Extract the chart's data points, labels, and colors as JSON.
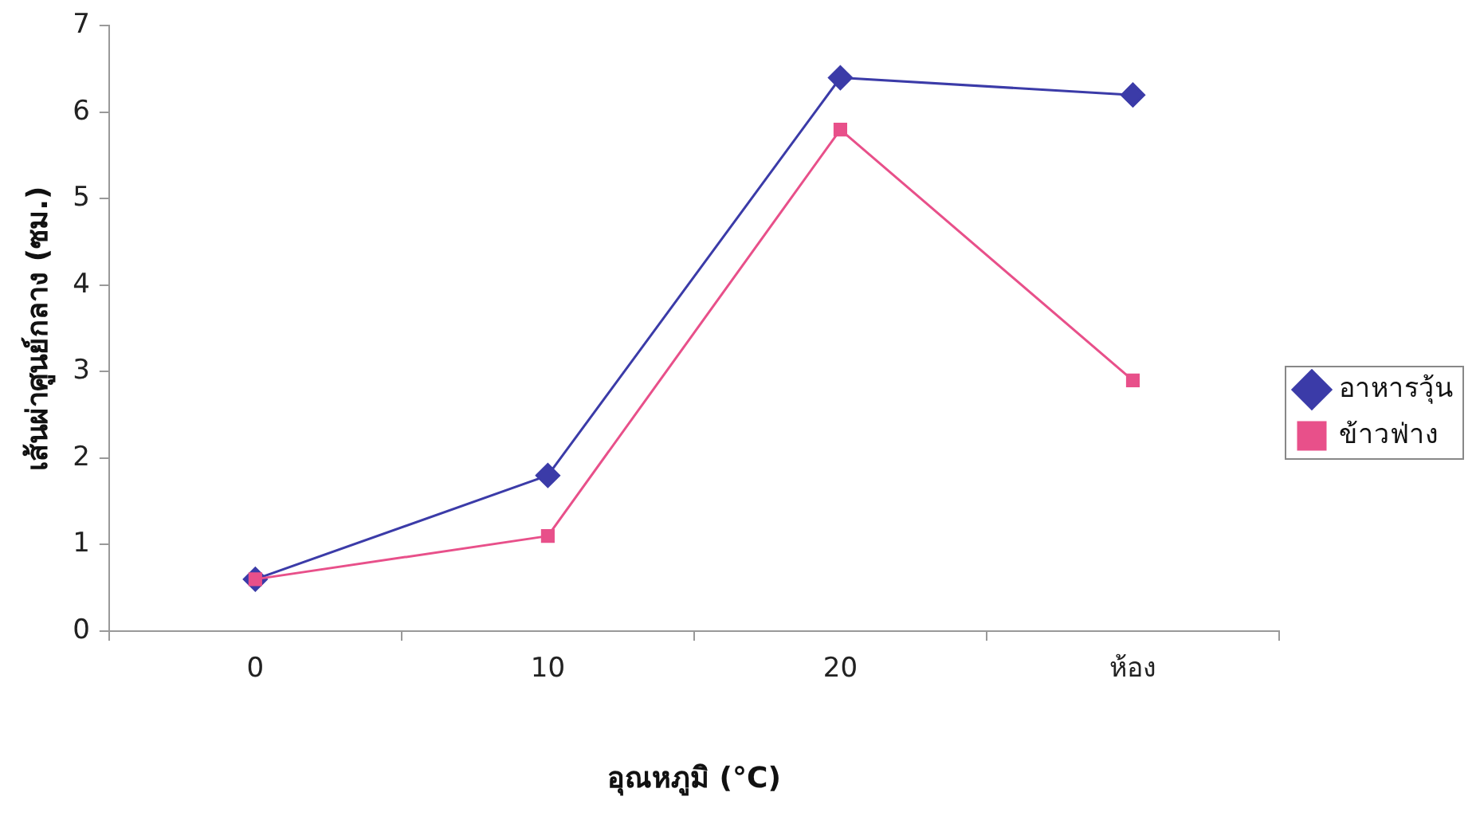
{
  "chart_data": {
    "type": "line",
    "xlabel": "อุณหภูมิ (°C)",
    "ylabel": "เส้นผ่าศูนย์กลาง (ซม.)",
    "categories": [
      "0",
      "10",
      "20",
      "ห้อง"
    ],
    "series": [
      {
        "name": "อาหารวุ้น",
        "color": "#3b3ba8",
        "marker": "diamond",
        "values": [
          0.6,
          1.8,
          6.4,
          6.2
        ]
      },
      {
        "name": "ข้าวฟ่าง",
        "color": "#e8508a",
        "marker": "square",
        "values": [
          0.6,
          1.1,
          5.8,
          2.9
        ]
      }
    ],
    "ylim": [
      0,
      7
    ],
    "yticks": [
      0,
      1,
      2,
      3,
      4,
      5,
      6,
      7
    ],
    "legend": "right",
    "line_style": "solid"
  }
}
